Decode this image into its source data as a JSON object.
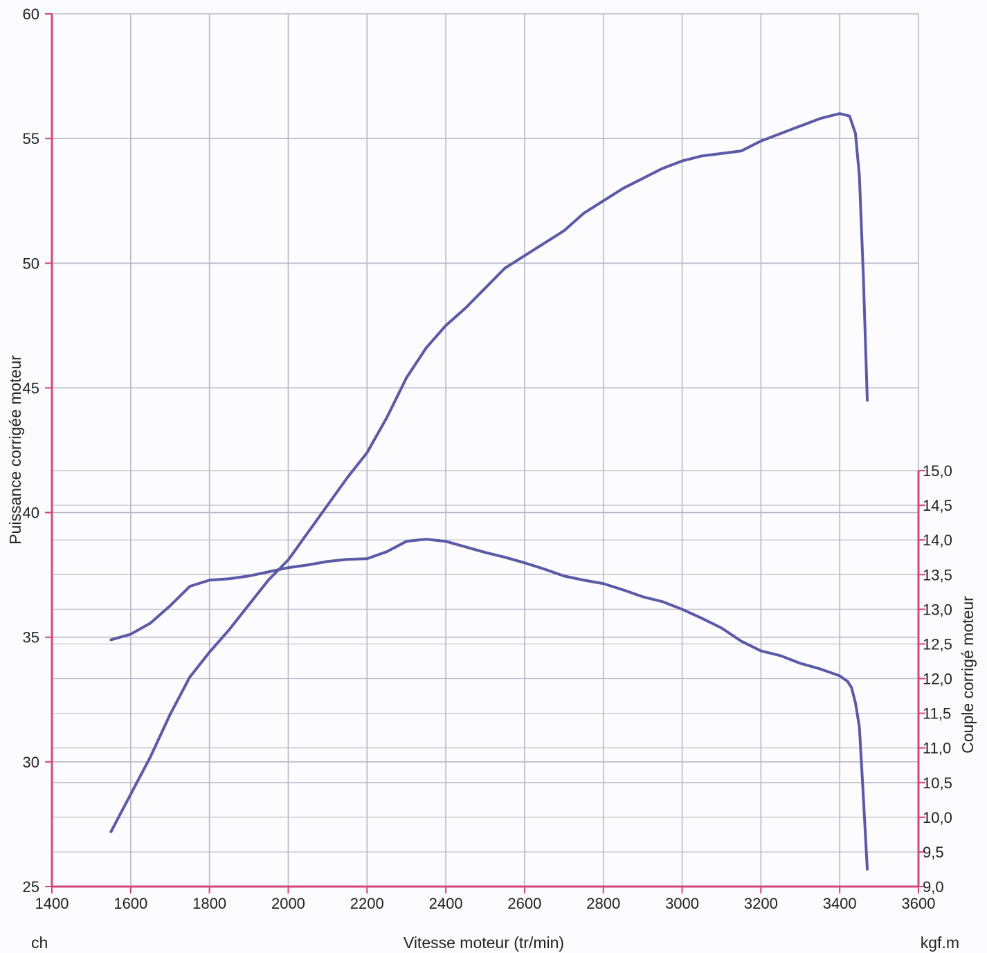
{
  "chart_data": {
    "type": "line",
    "xlabel": "Vitesse moteur (tr/min)",
    "x_unit_label": "ch",
    "y2_unit_label": "kgf.m",
    "ylabel_left": "Puissance corrigée moteur",
    "ylabel_right": "Couple corrigé moteur",
    "xlim": [
      1400,
      3600
    ],
    "ylim_left": [
      25,
      60
    ],
    "ylim_right": [
      9.0,
      15.0
    ],
    "x_ticks": [
      "1400",
      "1600",
      "1800",
      "2000",
      "2200",
      "2400",
      "2600",
      "2800",
      "3000",
      "3200",
      "3400",
      "3600"
    ],
    "y_left_ticks": [
      "25",
      "30",
      "35",
      "40",
      "45",
      "50",
      "55",
      "60"
    ],
    "y_right_ticks": [
      "9,0",
      "9,5",
      "10,0",
      "10,5",
      "11,0",
      "11,5",
      "12,0",
      "12,5",
      "13,0",
      "13,5",
      "14,0",
      "14,5",
      "15,0"
    ],
    "grid": true,
    "colors": {
      "series": "#5a5aa6",
      "axis": "#d6457a",
      "grid": "#b9b9c5"
    },
    "series": [
      {
        "axis": "left",
        "x": [
          1550,
          1600,
          1650,
          1700,
          1750,
          1800,
          1850,
          1900,
          1950,
          2000,
          2050,
          2100,
          2150,
          2200,
          2250,
          2300,
          2350,
          2400,
          2450,
          2500,
          2550,
          2600,
          2650,
          2700,
          2750,
          2800,
          2850,
          2900,
          2950,
          3000,
          3050,
          3100,
          3150,
          3200,
          3250,
          3300,
          3350,
          3400,
          3425,
          3440,
          3450,
          3460,
          3470
        ],
        "values": [
          27.2,
          28.7,
          30.2,
          31.9,
          33.4,
          34.4,
          35.3,
          36.3,
          37.3,
          38.1,
          39.2,
          40.3,
          41.4,
          42.4,
          43.8,
          45.4,
          46.6,
          47.5,
          48.2,
          49.0,
          49.8,
          50.3,
          50.8,
          51.3,
          52.0,
          52.5,
          53.0,
          53.4,
          53.8,
          54.1,
          54.3,
          54.4,
          54.5,
          54.9,
          55.2,
          55.5,
          55.8,
          56.0,
          55.9,
          55.2,
          53.5,
          49.5,
          44.5
        ]
      },
      {
        "axis": "right",
        "x": [
          1550,
          1600,
          1650,
          1700,
          1750,
          1800,
          1850,
          1900,
          1950,
          2000,
          2050,
          2100,
          2150,
          2200,
          2250,
          2300,
          2350,
          2400,
          2450,
          2500,
          2550,
          2600,
          2650,
          2700,
          2750,
          2800,
          2850,
          2900,
          2950,
          3000,
          3050,
          3100,
          3150,
          3200,
          3250,
          3300,
          3350,
          3400,
          3420,
          3430,
          3440,
          3450,
          3460,
          3470
        ],
        "values": [
          12.56,
          12.64,
          12.8,
          13.05,
          13.33,
          13.42,
          13.44,
          13.48,
          13.54,
          13.6,
          13.64,
          13.69,
          13.72,
          13.73,
          13.83,
          13.98,
          14.01,
          13.98,
          13.9,
          13.82,
          13.75,
          13.67,
          13.58,
          13.48,
          13.42,
          13.37,
          13.28,
          13.18,
          13.11,
          13.0,
          12.87,
          12.73,
          12.54,
          12.4,
          12.33,
          12.22,
          12.14,
          12.04,
          11.96,
          11.87,
          11.65,
          11.3,
          10.3,
          9.25
        ]
      }
    ]
  }
}
